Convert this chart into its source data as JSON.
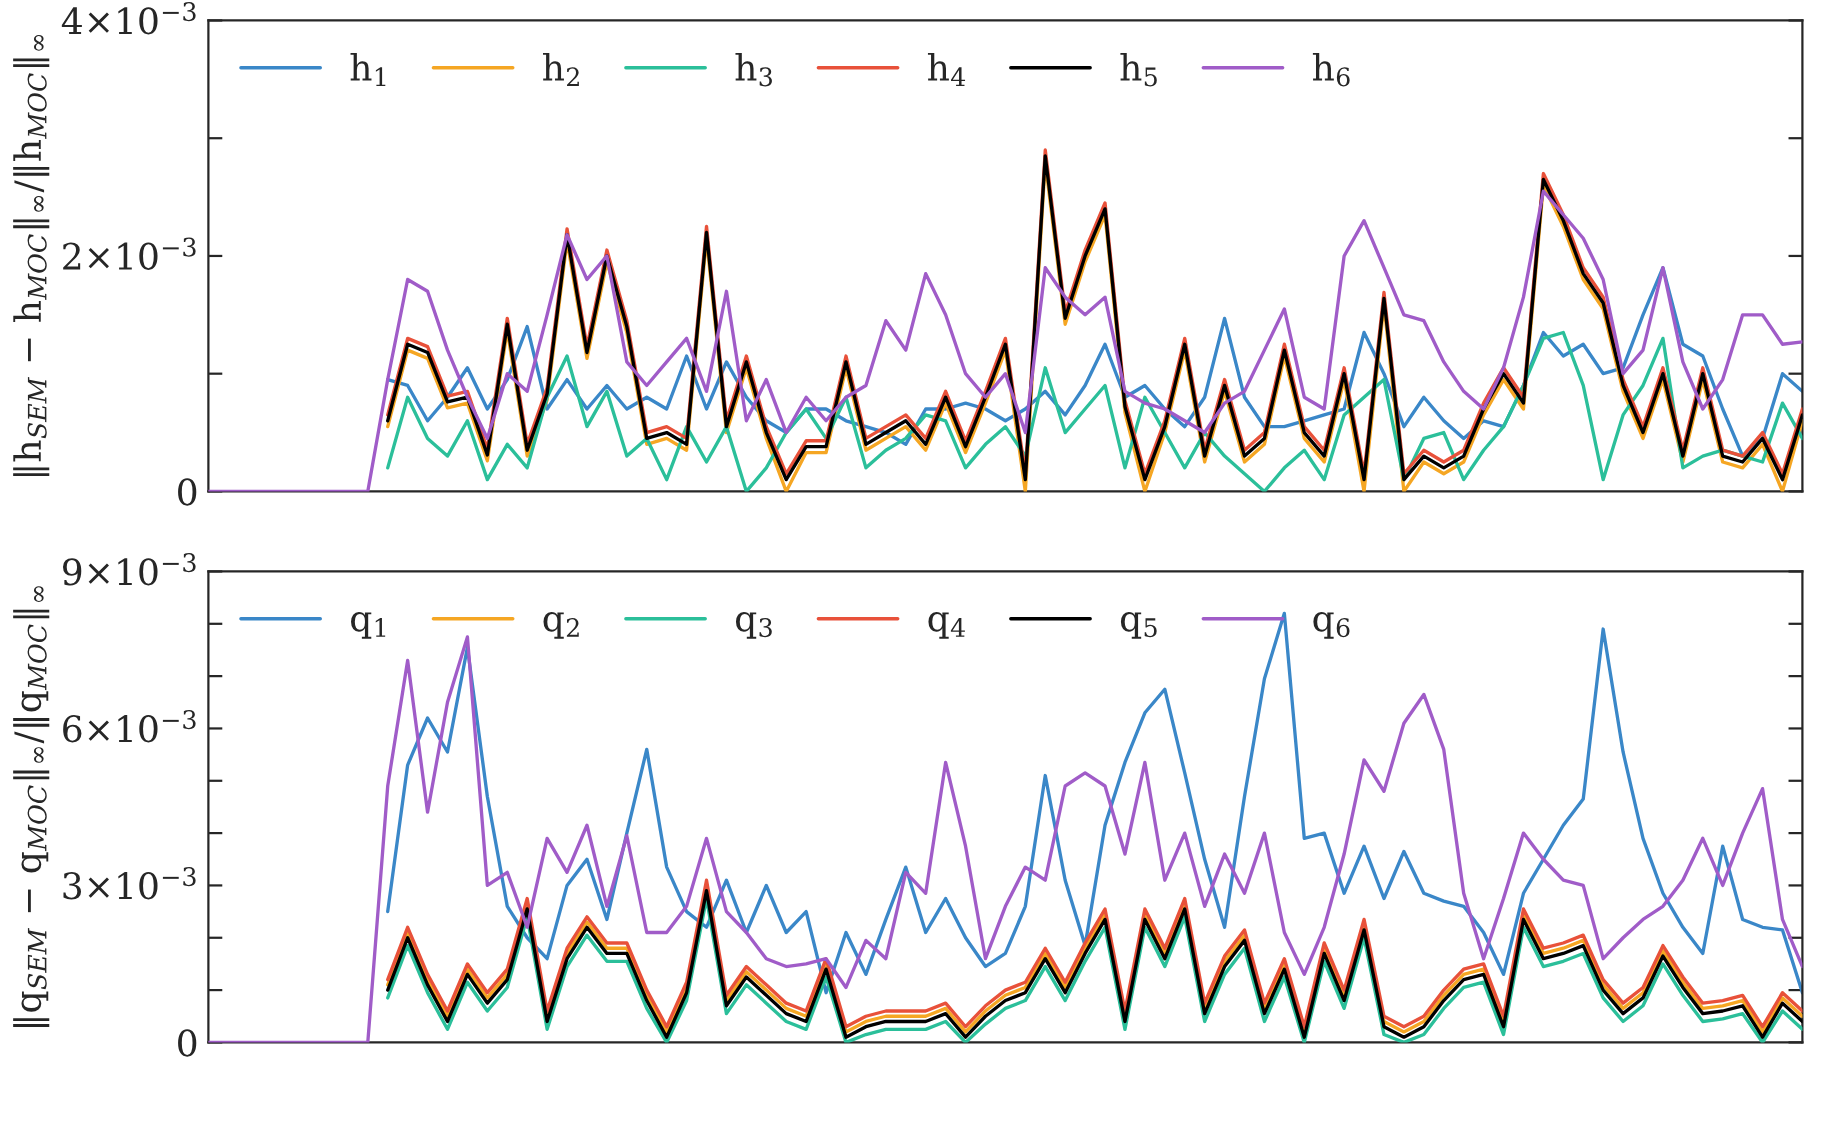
{
  "chart_data": [
    {
      "type": "line",
      "ylabel": "‖h$_{SEM}$ − h$_{MOC}$‖$_{∞}$/‖h$_{MOC}$‖$_{∞}$",
      "legend": "top left",
      "tick_labels": "y",
      "grid": false,
      "categories": [
        null,
        null,
        null,
        null,
        null,
        null,
        null,
        null,
        null,
        null,
        null,
        null,
        null,
        null,
        null,
        null,
        null,
        null,
        null,
        null,
        null,
        null,
        null,
        null,
        null,
        null,
        null,
        null,
        null,
        null,
        null,
        null,
        null,
        null,
        null,
        null,
        null,
        null,
        null,
        null,
        null,
        null,
        null,
        null,
        null,
        null,
        null,
        null,
        null,
        null,
        null,
        null,
        null,
        null,
        null,
        null,
        null,
        null,
        null,
        null,
        null,
        null,
        null,
        null,
        null,
        null,
        null,
        null,
        null,
        null,
        null,
        null,
        null,
        null,
        null,
        null,
        null,
        null,
        null,
        null,
        null
      ],
      "ylim": [
        0,
        0.004
      ],
      "yticks": [
        0,
        {
          "value": 0.001,
          "label": null
        },
        {
          "value": 0.002,
          "label": "2×10$^{−3}$"
        },
        {
          "value": 0.003,
          "label": null
        },
        {
          "value": 0.004,
          "label": "4×10$^{−3}$"
        }
      ],
      "series": [
        {
          "name": "h$_{1}$",
          "color": "#3a87c8",
          "values": [
            null,
            null,
            null,
            null,
            null,
            null,
            null,
            null,
            null,
            0.00095,
            0.0009,
            0.0006,
            0.0008,
            0.00105,
            0.0007,
            0.00095,
            0.0014,
            0.0007,
            0.00095,
            0.0007,
            0.0009,
            0.0007,
            0.0008,
            0.0007,
            0.00115,
            0.0007,
            0.0011,
            0.0008,
            0.0006,
            0.0005,
            0.0007,
            0.0007,
            0.0006,
            0.00055,
            0.0005,
            0.0004,
            0.0007,
            0.0007,
            0.00075,
            0.0007,
            0.0006,
            0.0007,
            0.00085,
            0.00065,
            0.0009,
            0.00125,
            0.0008,
            0.0009,
            0.0007,
            0.00055,
            0.0008,
            0.00147,
            0.0008,
            0.00055,
            0.00055,
            0.0006,
            0.00065,
            0.0007,
            0.00135,
            0.001,
            0.00055,
            0.0008,
            0.0006,
            0.00045,
            0.0006,
            0.00055,
            0.0009,
            0.00135,
            0.00115,
            0.00125,
            0.001,
            0.00105,
            0.0015,
            0.0019,
            0.00125,
            0.00115,
            0.0007,
            0.0003,
            0.00045,
            0.001,
            0.00085
          ]
        },
        {
          "name": "h$_{2}$",
          "color": "#f5a623",
          "values": [
            null,
            null,
            null,
            null,
            null,
            null,
            null,
            null,
            null,
            0.00055,
            0.0012,
            0.00113,
            0.00071,
            0.00075,
            0.00026,
            0.00137,
            0.0003,
            0.00078,
            0.00213,
            0.00113,
            0.00195,
            0.00135,
            0.0004,
            0.00045,
            0.00035,
            0.00215,
            0.0005,
            0.00105,
            0.00045,
            0,
            0.00033,
            0.00033,
            0.00105,
            0.00035,
            0.00045,
            0.00055,
            0.00035,
            0.00075,
            0.00033,
            0.00075,
            0.0012,
            0,
            0.0028,
            0.00142,
            0.00195,
            0.00235,
            0.00067,
            0,
            0.0005,
            0.0012,
            0.00025,
            0.00085,
            0.00025,
            0.0004,
            0.00115,
            0.00045,
            0.00025,
            0.00095,
            0,
            0.00159,
            0,
            0.00025,
            0.00015,
            0.00025,
            0.00065,
            0.00095,
            0.0007,
            0.0026,
            0.00225,
            0.0018,
            0.00155,
            0.00085,
            0.00045,
            0.00095,
            0.00025,
            0.00095,
            0.00025,
            0.0002,
            0.0004,
            0,
            0.0006
          ]
        },
        {
          "name": "h$_{3}$",
          "color": "#2bbf9a",
          "values": [
            null,
            null,
            null,
            null,
            null,
            null,
            null,
            null,
            null,
            0.0002,
            0.0008,
            0.00045,
            0.0003,
            0.0006,
            0.0001,
            0.0004,
            0.0002,
            0.0008,
            0.00115,
            0.00055,
            0.00085,
            0.0003,
            0.00045,
            0.0001,
            0.00055,
            0.00025,
            0.00055,
            0,
            0.0002,
            0.0005,
            0.0007,
            0.00045,
            0.0008,
            0.0002,
            0.00035,
            0.00045,
            0.00065,
            0.0006,
            0.0002,
            0.0004,
            0.00055,
            0.0003,
            0.00105,
            0.0005,
            0.0007,
            0.0009,
            0.0002,
            0.0008,
            0.0005,
            0.0002,
            0.0005,
            0.0003,
            0.00015,
            0,
            0.0002,
            0.00035,
            0.0001,
            0.00065,
            0.0008,
            0.00095,
            0.0001,
            0.00045,
            0.0005,
            0.0001,
            0.00035,
            0.00055,
            0.0009,
            0.0013,
            0.00135,
            0.0009,
            0.0001,
            0.00065,
            0.0009,
            0.0013,
            0.0002,
            0.0003,
            0.00035,
            0.0003,
            0.00025,
            0.00075,
            0.00045
          ]
        },
        {
          "name": "h$_{4}$",
          "color": "#e8513a",
          "values": [
            null,
            null,
            null,
            null,
            null,
            null,
            null,
            null,
            null,
            0.00065,
            0.0013,
            0.00123,
            0.00081,
            0.00085,
            0.00036,
            0.00147,
            0.0004,
            0.00088,
            0.00223,
            0.00123,
            0.00205,
            0.00145,
            0.0005,
            0.00055,
            0.00045,
            0.00225,
            0.0006,
            0.00115,
            0.00055,
            0.00015,
            0.00043,
            0.00043,
            0.00115,
            0.00045,
            0.00055,
            0.00065,
            0.00045,
            0.00085,
            0.00043,
            0.00085,
            0.0013,
            0.00015,
            0.0029,
            0.00152,
            0.00205,
            0.00245,
            0.00077,
            0.00015,
            0.0006,
            0.0013,
            0.00035,
            0.00095,
            0.00035,
            0.0005,
            0.00125,
            0.00055,
            0.00035,
            0.00105,
            0.00015,
            0.00169,
            0.00015,
            0.00035,
            0.00025,
            0.00035,
            0.00075,
            0.00105,
            0.0008,
            0.0027,
            0.00235,
            0.0019,
            0.00165,
            0.00095,
            0.00055,
            0.00105,
            0.00035,
            0.00105,
            0.00035,
            0.0003,
            0.0005,
            0.00015,
            0.0007
          ]
        },
        {
          "name": "h$_{5}$",
          "color": "#000000",
          "values": [
            null,
            null,
            null,
            null,
            null,
            null,
            null,
            null,
            null,
            0.0006,
            0.00125,
            0.00118,
            0.00076,
            0.0008,
            0.00031,
            0.00142,
            0.00035,
            0.00083,
            0.00218,
            0.00118,
            0.002,
            0.0014,
            0.00045,
            0.0005,
            0.0004,
            0.0022,
            0.00055,
            0.0011,
            0.0005,
            0.0001,
            0.00038,
            0.00038,
            0.0011,
            0.0004,
            0.0005,
            0.0006,
            0.0004,
            0.0008,
            0.00038,
            0.0008,
            0.00125,
            0.0001,
            0.00285,
            0.00147,
            0.002,
            0.0024,
            0.00072,
            0.0001,
            0.00055,
            0.00125,
            0.0003,
            0.0009,
            0.0003,
            0.00045,
            0.0012,
            0.0005,
            0.0003,
            0.001,
            0.0001,
            0.00164,
            0.0001,
            0.0003,
            0.0002,
            0.0003,
            0.0007,
            0.001,
            0.00075,
            0.00265,
            0.0023,
            0.00185,
            0.0016,
            0.0009,
            0.0005,
            0.001,
            0.0003,
            0.001,
            0.0003,
            0.00025,
            0.00045,
            0.0001,
            0.00065
          ]
        },
        {
          "name": "h$_{6}$",
          "color": "#a05cc8",
          "values": [
            0,
            0,
            0,
            0,
            0,
            0,
            0,
            0,
            0,
            0.00095,
            0.0018,
            0.0017,
            0.0012,
            0.0008,
            0.00045,
            0.001,
            0.00085,
            0.0015,
            0.00218,
            0.0018,
            0.002,
            0.0011,
            0.0009,
            0.0011,
            0.0013,
            0.00085,
            0.0017,
            0.0006,
            0.00095,
            0.0005,
            0.0008,
            0.0006,
            0.0008,
            0.0009,
            0.00145,
            0.0012,
            0.00185,
            0.0015,
            0.001,
            0.0008,
            0.001,
            0.0005,
            0.0019,
            0.00165,
            0.0015,
            0.00165,
            0.00085,
            0.00075,
            0.0007,
            0.0006,
            0.0005,
            0.00075,
            0.00085,
            0.0012,
            0.00155,
            0.0008,
            0.0007,
            0.002,
            0.0023,
            0.0019,
            0.0015,
            0.00145,
            0.0011,
            0.00085,
            0.0007,
            0.00105,
            0.00165,
            0.00255,
            0.00235,
            0.00215,
            0.0018,
            0.001,
            0.0012,
            0.0019,
            0.0011,
            0.0007,
            0.00095,
            0.0015,
            0.0015,
            0.00125,
            0.00127
          ]
        }
      ]
    },
    {
      "type": "line",
      "ylabel": "‖q$_{SEM}$ − q$_{MOC}$‖$_{∞}$/‖q$_{MOC}$‖$_{∞}$",
      "legend": "top left",
      "tick_labels": "y",
      "grid": false,
      "categories": [
        null,
        null,
        null,
        null,
        null,
        null,
        null,
        null,
        null,
        null,
        null,
        null,
        null,
        null,
        null,
        null,
        null,
        null,
        null,
        null,
        null,
        null,
        null,
        null,
        null,
        null,
        null,
        null,
        null,
        null,
        null,
        null,
        null,
        null,
        null,
        null,
        null,
        null,
        null,
        null,
        null,
        null,
        null,
        null,
        null,
        null,
        null,
        null,
        null,
        null,
        null,
        null,
        null,
        null,
        null,
        null,
        null,
        null,
        null,
        null,
        null,
        null,
        null,
        null,
        null,
        null,
        null,
        null,
        null,
        null,
        null,
        null,
        null,
        null,
        null,
        null,
        null,
        null,
        null,
        null,
        null
      ],
      "ylim": [
        0,
        0.009
      ],
      "yticks": [
        0,
        {
          "value": 0.001,
          "label": null
        },
        {
          "value": 0.002,
          "label": null
        },
        {
          "value": 0.003,
          "label": "3×10$^{−3}$"
        },
        {
          "value": 0.004,
          "label": null
        },
        {
          "value": 0.005,
          "label": null
        },
        {
          "value": 0.006,
          "label": "6×10$^{−3}$"
        },
        {
          "value": 0.007,
          "label": null
        },
        {
          "value": 0.008,
          "label": null
        },
        {
          "value": 0.009,
          "label": "9×10$^{−3}$"
        }
      ],
      "series": [
        {
          "name": "q$_{1}$",
          "color": "#3a87c8",
          "values": [
            null,
            null,
            null,
            null,
            null,
            null,
            null,
            null,
            null,
            0.0025,
            0.0053,
            0.0062,
            0.00555,
            0.00755,
            0.0047,
            0.0026,
            0.002,
            0.0016,
            0.003,
            0.0035,
            0.00235,
            0.004,
            0.0056,
            0.00335,
            0.0025,
            0.0022,
            0.0031,
            0.0021,
            0.003,
            0.0021,
            0.0025,
            0.00095,
            0.0021,
            0.0013,
            0.00235,
            0.00335,
            0.0021,
            0.00275,
            0.002,
            0.00145,
            0.0017,
            0.0026,
            0.0051,
            0.0031,
            0.00185,
            0.00415,
            0.00535,
            0.0063,
            0.00675,
            0.00515,
            0.0035,
            0.0022,
            0.0047,
            0.00695,
            0.0082,
            0.0039,
            0.004,
            0.00285,
            0.00375,
            0.00275,
            0.00365,
            0.00285,
            0.0027,
            0.0026,
            0.0021,
            0.0013,
            0.00285,
            0.0035,
            0.00415,
            0.00465,
            0.0079,
            0.00555,
            0.0039,
            0.00285,
            0.0022,
            0.0017,
            0.00375,
            0.00235,
            0.0022,
            0.00215,
            0.00095
          ]
        },
        {
          "name": "q$_{2}$",
          "color": "#f5a623",
          "values": [
            null,
            null,
            null,
            null,
            null,
            null,
            null,
            null,
            null,
            0.0011,
            0.0021,
            0.0012,
            0.0005,
            0.0014,
            0.00085,
            0.0013,
            0.00265,
            0.0005,
            0.0017,
            0.0023,
            0.0018,
            0.0018,
            0.0009,
            0.0002,
            0.00105,
            0.003,
            0.0008,
            0.00135,
            0.001,
            0.00065,
            0.0005,
            0.0015,
            0.0002,
            0.0004,
            0.0005,
            0.0005,
            0.0005,
            0.00065,
            0.0002,
            0.0006,
            0.0009,
            0.00105,
            0.0017,
            0.00105,
            0.0018,
            0.00245,
            0.0005,
            0.00245,
            0.0017,
            0.00265,
            0.00065,
            0.00155,
            0.00205,
            0.00065,
            0.0015,
            0.0002,
            0.0018,
            0.0009,
            0.00225,
            0.0004,
            0.0002,
            0.0004,
            0.0009,
            0.0013,
            0.0014,
            0.0004,
            0.00245,
            0.0017,
            0.0018,
            0.00195,
            0.0011,
            0.00065,
            0.00095,
            0.00175,
            0.00115,
            0.00065,
            0.0007,
            0.0008,
            0.0002,
            0.00085,
            0.0005
          ]
        },
        {
          "name": "q$_{3}$",
          "color": "#2bbf9a",
          "values": [
            null,
            null,
            null,
            null,
            null,
            null,
            null,
            null,
            null,
            0.00085,
            0.00185,
            0.00095,
            0.00025,
            0.00115,
            0.0006,
            0.00105,
            0.0024,
            0.00025,
            0.00145,
            0.00205,
            0.00155,
            0.00155,
            0.00065,
            0,
            0.0008,
            0.00275,
            0.00055,
            0.0011,
            0.00075,
            0.0004,
            0.00025,
            0.00125,
            0,
            0.00015,
            0.00025,
            0.00025,
            0.00025,
            0.0004,
            0,
            0.00035,
            0.00065,
            0.0008,
            0.00145,
            0.0008,
            0.00155,
            0.0022,
            0.00025,
            0.0022,
            0.00145,
            0.0024,
            0.0004,
            0.0013,
            0.0018,
            0.0004,
            0.00125,
            0,
            0.00155,
            0.00065,
            0.002,
            0.00015,
            0,
            0.00015,
            0.00065,
            0.00105,
            0.00115,
            0.00015,
            0.0022,
            0.00145,
            0.00155,
            0.0017,
            0.00085,
            0.0004,
            0.0007,
            0.0015,
            0.0009,
            0.0004,
            0.00045,
            0.00055,
            0,
            0.0006,
            0.00025
          ]
        },
        {
          "name": "q$_{4}$",
          "color": "#e8513a",
          "values": [
            null,
            null,
            null,
            null,
            null,
            null,
            null,
            null,
            null,
            0.0012,
            0.0022,
            0.0013,
            0.0006,
            0.0015,
            0.00095,
            0.0014,
            0.00275,
            0.0006,
            0.0018,
            0.0024,
            0.0019,
            0.0019,
            0.001,
            0.0003,
            0.00115,
            0.0031,
            0.0009,
            0.00145,
            0.0011,
            0.00075,
            0.0006,
            0.0016,
            0.0003,
            0.0005,
            0.0006,
            0.0006,
            0.0006,
            0.00075,
            0.0003,
            0.0007,
            0.001,
            0.00115,
            0.0018,
            0.00115,
            0.0019,
            0.00255,
            0.0006,
            0.00255,
            0.0018,
            0.00275,
            0.00075,
            0.00165,
            0.00215,
            0.00075,
            0.0016,
            0.0003,
            0.0019,
            0.001,
            0.00235,
            0.0005,
            0.0003,
            0.0005,
            0.001,
            0.0014,
            0.0015,
            0.0005,
            0.00255,
            0.0018,
            0.0019,
            0.00205,
            0.0012,
            0.00075,
            0.00105,
            0.00185,
            0.00125,
            0.00075,
            0.0008,
            0.0009,
            0.0003,
            0.00095,
            0.0006
          ]
        },
        {
          "name": "q$_{5}$",
          "color": "#000000",
          "values": [
            null,
            null,
            null,
            null,
            null,
            null,
            null,
            null,
            null,
            0.001,
            0.002,
            0.0011,
            0.0004,
            0.0013,
            0.00075,
            0.0012,
            0.00255,
            0.0004,
            0.0016,
            0.0022,
            0.0017,
            0.0017,
            0.0008,
            0.0001,
            0.00095,
            0.0029,
            0.0007,
            0.00125,
            0.0009,
            0.00055,
            0.0004,
            0.0014,
            0.0001,
            0.0003,
            0.0004,
            0.0004,
            0.0004,
            0.00055,
            0.0001,
            0.0005,
            0.0008,
            0.00095,
            0.0016,
            0.00095,
            0.0017,
            0.00235,
            0.0004,
            0.00235,
            0.0016,
            0.00255,
            0.00055,
            0.00145,
            0.00195,
            0.00055,
            0.0014,
            0.0001,
            0.0017,
            0.0008,
            0.00215,
            0.0003,
            0.0001,
            0.0003,
            0.0008,
            0.0012,
            0.0013,
            0.0003,
            0.00235,
            0.0016,
            0.0017,
            0.00185,
            0.001,
            0.00055,
            0.00085,
            0.00165,
            0.00105,
            0.00055,
            0.0006,
            0.0007,
            0.0001,
            0.00075,
            0.0004
          ]
        },
        {
          "name": "q$_{6}$",
          "color": "#a05cc8",
          "values": [
            0,
            0,
            0,
            0,
            0,
            0,
            0,
            0,
            0,
            0.0049,
            0.0073,
            0.0044,
            0.0065,
            0.00775,
            0.003,
            0.00325,
            0.0022,
            0.0039,
            0.00325,
            0.00415,
            0.0026,
            0.00395,
            0.0021,
            0.0021,
            0.0026,
            0.0039,
            0.0025,
            0.0021,
            0.0016,
            0.00145,
            0.0015,
            0.0016,
            0.00105,
            0.00195,
            0.0016,
            0.00325,
            0.00285,
            0.00535,
            0.00375,
            0.0016,
            0.0026,
            0.00335,
            0.0031,
            0.0049,
            0.00515,
            0.0049,
            0.0036,
            0.00535,
            0.0031,
            0.004,
            0.0026,
            0.0036,
            0.00285,
            0.004,
            0.0021,
            0.0013,
            0.0022,
            0.0036,
            0.0054,
            0.0048,
            0.0061,
            0.00665,
            0.0056,
            0.00285,
            0.0016,
            0.00275,
            0.004,
            0.0035,
            0.0031,
            0.003,
            0.0016,
            0.002,
            0.00235,
            0.0026,
            0.0031,
            0.0039,
            0.003,
            0.004,
            0.00485,
            0.00235,
            0.00145
          ]
        }
      ]
    }
  ]
}
